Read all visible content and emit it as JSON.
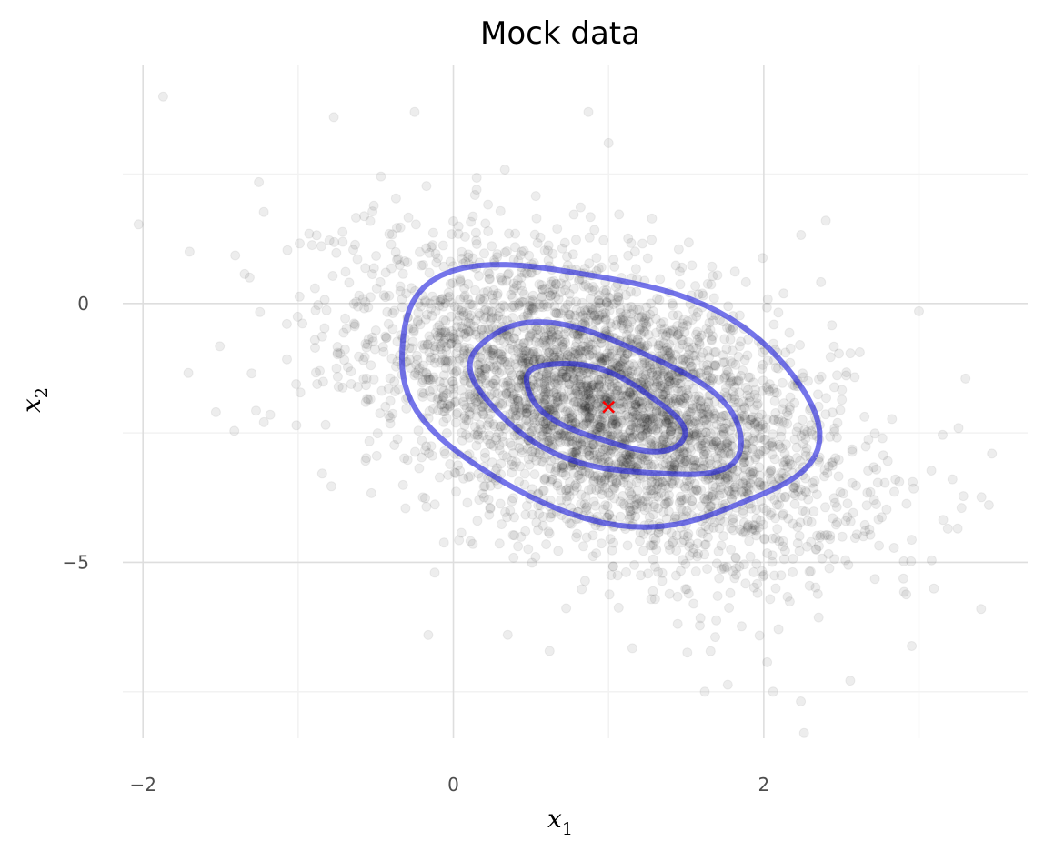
{
  "chart_data": {
    "type": "scatter",
    "title": "Mock data",
    "xlabel": "x",
    "xlabel_sub": "1",
    "ylabel": "x",
    "ylabel_sub": "2",
    "xlim": [
      -2.13,
      3.7
    ],
    "ylim": [
      -8.4,
      4.6
    ],
    "x_ticks": [
      -2,
      0,
      2
    ],
    "x_tick_labels": [
      "−2",
      "0",
      "2"
    ],
    "y_ticks": [
      0,
      -5
    ],
    "y_tick_labels": [
      "0",
      "−5"
    ],
    "grid": true,
    "legend": "none",
    "colors": {
      "points": "#000000",
      "contours": "#2020dd",
      "center": "#ff0000",
      "grid_major": "#dedede",
      "grid_minor": "#f2f2f2"
    },
    "series": [
      {
        "kind": "scatter",
        "n_points": 4000,
        "mean": [
          1.0,
          -2.0
        ],
        "std": [
          0.75,
          1.5
        ],
        "correlation": -0.48,
        "point_alpha": 0.07,
        "representative_outliers": [
          [
            -1.87,
            4.0
          ],
          [
            -0.77,
            3.6
          ],
          [
            -0.25,
            3.7
          ],
          [
            0.87,
            3.7
          ],
          [
            1.0,
            3.1
          ],
          [
            -1.53,
            -2.1
          ],
          [
            -1.3,
            -1.35
          ],
          [
            -1.18,
            -2.15
          ],
          [
            -0.12,
            -5.2
          ],
          [
            0.35,
            -6.4
          ],
          [
            1.62,
            -7.5
          ],
          [
            2.06,
            -7.5
          ],
          [
            2.26,
            -8.3
          ],
          [
            3.4,
            -5.9
          ],
          [
            3.47,
            -2.9
          ],
          [
            3.0,
            -0.15
          ],
          [
            3.3,
            -1.45
          ],
          [
            -1.7,
            1.0
          ],
          [
            2.4,
            1.6
          ],
          [
            0.15,
            2.2
          ]
        ]
      },
      {
        "kind": "contour",
        "levels": [
          {
            "center": [
              0.97,
              -1.75
            ],
            "a": 1.45,
            "b": 1.2,
            "angle": -0.42
          },
          {
            "center": [
              0.97,
              -1.9
            ],
            "a": 0.98,
            "b": 0.64,
            "angle": -0.5
          },
          {
            "center": [
              0.97,
              -2.0
            ],
            "a": 0.59,
            "b": 0.34,
            "angle": -0.55
          }
        ]
      },
      {
        "kind": "marker",
        "x": 1.0,
        "y": -2.0,
        "symbol": "x"
      }
    ]
  }
}
